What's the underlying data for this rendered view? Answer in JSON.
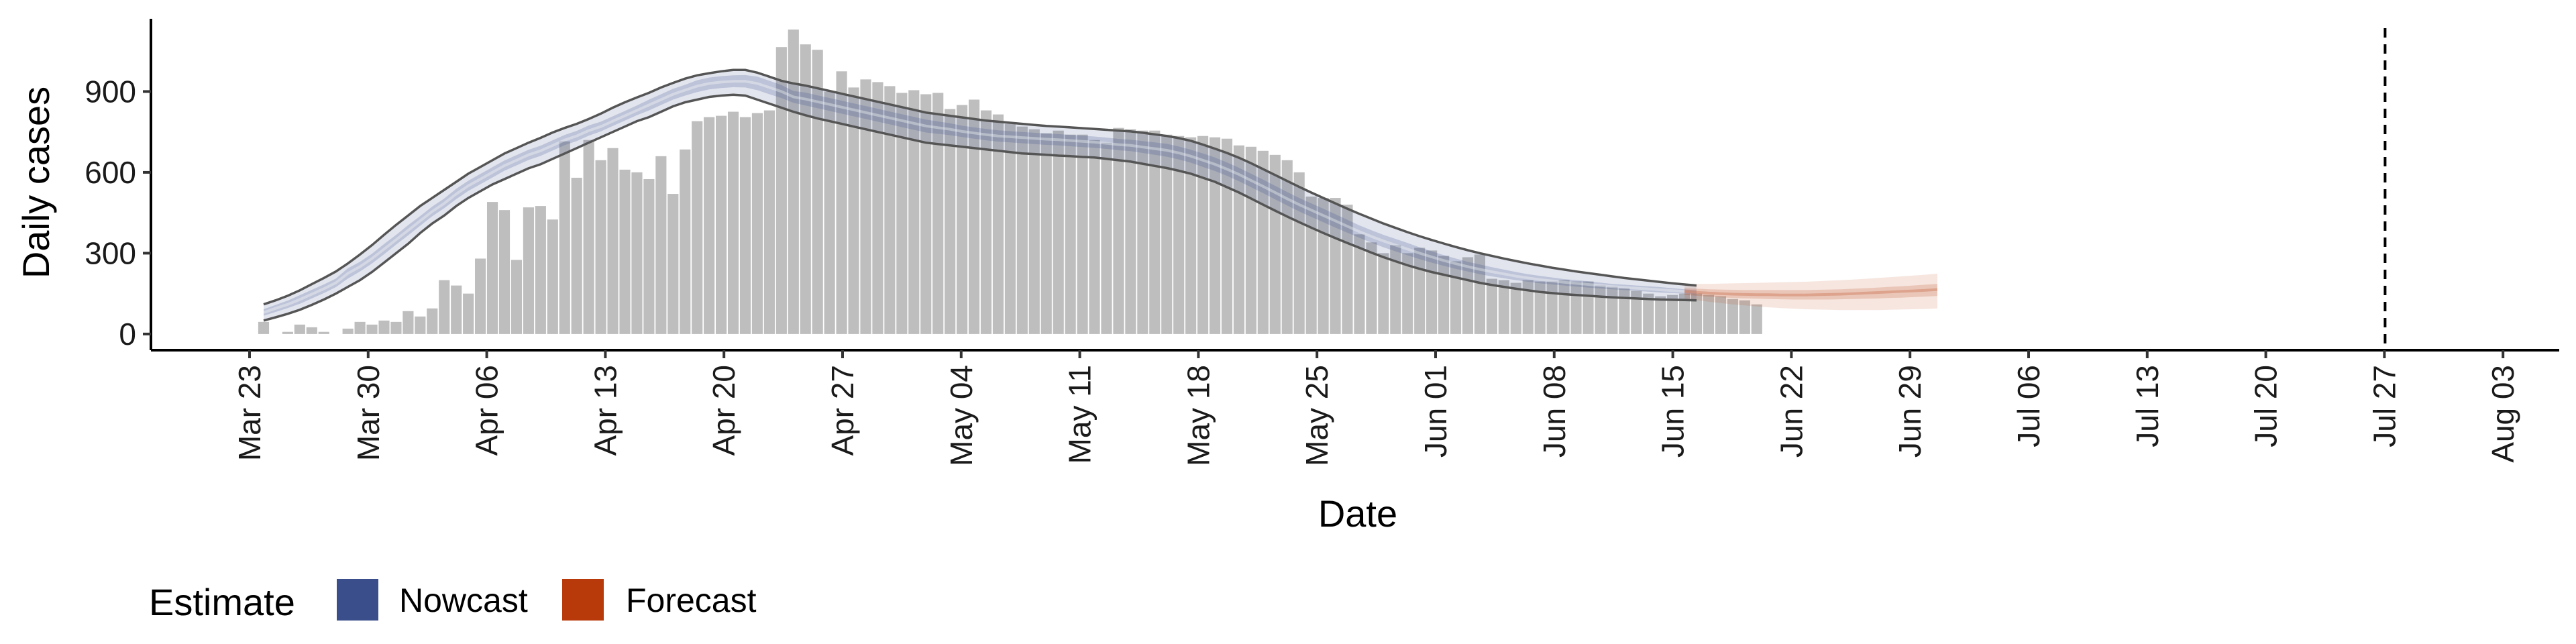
{
  "chart_data": {
    "type": "bar",
    "title": "",
    "xlabel": "Date",
    "ylabel": "Daily cases",
    "x_start": "2020-03-24",
    "ylim": [
      -60,
      1170
    ],
    "yticks": [
      0,
      300,
      600,
      900
    ],
    "ytick_labels": [
      "0",
      "300",
      "600",
      "900"
    ],
    "xtick_labels": [
      "Mar 23",
      "Mar 30",
      "Apr 06",
      "Apr 13",
      "Apr 20",
      "Apr 27",
      "May 04",
      "May 11",
      "May 18",
      "May 25",
      "Jun 01",
      "Jun 08",
      "Jun 15",
      "Jun 22",
      "Jun 29",
      "Jul 06",
      "Jul 13",
      "Jul 20",
      "Jul 27",
      "Aug 03"
    ],
    "forecast_date": "Jul 27",
    "colors": {
      "bars": "#bebebe",
      "nowcast": "#3a4e8c",
      "forecast": "#b83a0a",
      "outline": "#555555"
    },
    "bars": {
      "name": "Daily cases",
      "values": [
        45,
        0,
        8,
        35,
        25,
        8,
        0,
        20,
        45,
        35,
        50,
        45,
        85,
        65,
        95,
        200,
        180,
        150,
        280,
        490,
        460,
        275,
        470,
        475,
        425,
        715,
        580,
        720,
        645,
        690,
        610,
        600,
        575,
        660,
        520,
        685,
        790,
        805,
        810,
        825,
        805,
        820,
        830,
        1065,
        1130,
        1075,
        1055,
        900,
        975,
        915,
        945,
        935,
        920,
        895,
        905,
        890,
        895,
        835,
        850,
        870,
        830,
        815,
        780,
        770,
        760,
        745,
        755,
        740,
        740,
        720,
        710,
        765,
        760,
        755,
        755,
        740,
        735,
        730,
        735,
        730,
        725,
        700,
        695,
        680,
        665,
        645,
        600,
        510,
        505,
        505,
        480,
        370,
        340,
        300,
        330,
        300,
        320,
        310,
        290,
        270,
        285,
        295,
        205,
        200,
        190,
        200,
        195,
        195,
        200,
        195,
        195,
        180,
        175,
        170,
        160,
        150,
        140,
        145,
        150,
        150,
        145,
        140,
        130,
        125,
        110
      ]
    },
    "estimate": {
      "name": "Nowcast",
      "median": [
        80,
        95,
        110,
        128,
        148,
        168,
        190,
        225,
        250,
        280,
        315,
        350,
        385,
        420,
        455,
        485,
        520,
        550,
        575,
        600,
        625,
        645,
        665,
        680,
        700,
        720,
        735,
        755,
        770,
        790,
        810,
        830,
        850,
        870,
        890,
        905,
        920,
        930,
        935,
        938,
        938,
        930,
        915,
        900,
        880,
        872,
        862,
        852,
        842,
        832,
        822,
        812,
        802,
        792,
        782,
        772,
        766,
        760,
        752,
        746,
        740,
        735,
        732,
        729,
        726,
        723,
        721,
        718,
        715,
        712,
        708,
        703,
        700,
        694,
        688,
        682,
        672,
        660,
        645,
        630,
        612,
        592,
        570,
        548,
        525,
        502,
        480,
        460,
        440,
        420,
        400,
        380,
        362,
        345,
        330,
        315,
        300,
        286,
        273,
        261,
        250,
        240,
        231,
        223,
        215,
        208,
        202,
        197,
        192,
        188,
        184,
        180,
        176,
        173,
        170,
        167,
        164,
        161,
        158,
        155
      ],
      "outer_lower": [
        50,
        62,
        75,
        90,
        108,
        128,
        150,
        175,
        200,
        230,
        265,
        300,
        335,
        375,
        410,
        440,
        475,
        505,
        530,
        555,
        575,
        595,
        615,
        630,
        650,
        670,
        690,
        710,
        730,
        750,
        770,
        790,
        805,
        825,
        845,
        860,
        870,
        880,
        885,
        888,
        885,
        870,
        855,
        840,
        825,
        812,
        800,
        790,
        780,
        770,
        760,
        750,
        740,
        730,
        720,
        710,
        705,
        700,
        695,
        690,
        685,
        680,
        675,
        670,
        668,
        665,
        662,
        660,
        657,
        655,
        650,
        645,
        640,
        632,
        624,
        616,
        606,
        595,
        580,
        565,
        545,
        525,
        503,
        480,
        458,
        436,
        415,
        395,
        375,
        356,
        338,
        320,
        302,
        285,
        270,
        255,
        242,
        230,
        220,
        210,
        200,
        190,
        182,
        175,
        168,
        162,
        156,
        152,
        148,
        145,
        142,
        139,
        136,
        134,
        132,
        130,
        128,
        127,
        126,
        125
      ],
      "outer_upper": [
        110,
        125,
        142,
        162,
        185,
        208,
        232,
        262,
        295,
        330,
        368,
        405,
        440,
        475,
        505,
        535,
        565,
        595,
        620,
        645,
        670,
        690,
        710,
        728,
        748,
        765,
        780,
        798,
        818,
        840,
        860,
        878,
        895,
        915,
        932,
        948,
        960,
        968,
        975,
        980,
        980,
        970,
        955,
        940,
        930,
        922,
        912,
        902,
        892,
        882,
        872,
        862,
        852,
        842,
        832,
        822,
        816,
        810,
        804,
        798,
        792,
        788,
        784,
        780,
        776,
        772,
        770,
        767,
        764,
        761,
        758,
        755,
        752,
        747,
        741,
        735,
        727,
        717,
        703,
        688,
        672,
        654,
        634,
        612,
        590,
        568,
        546,
        525,
        505,
        485,
        465,
        446,
        428,
        410,
        394,
        378,
        363,
        349,
        336,
        323,
        311,
        300,
        290,
        280,
        271,
        262,
        254,
        246,
        239,
        232,
        226,
        220,
        214,
        208,
        203,
        198,
        193,
        188,
        184,
        180
      ],
      "inner_lower": [
        68,
        82,
        96,
        112,
        132,
        152,
        174,
        206,
        232,
        262,
        296,
        332,
        366,
        402,
        437,
        467,
        501,
        531,
        556,
        581,
        606,
        626,
        646,
        661,
        681,
        701,
        716,
        736,
        752,
        772,
        792,
        812,
        830,
        850,
        870,
        885,
        898,
        908,
        913,
        916,
        915,
        905,
        890,
        876,
        858,
        848,
        838,
        828,
        818,
        808,
        798,
        788,
        778,
        768,
        758,
        748,
        743,
        738,
        731,
        725,
        719,
        714,
        711,
        708,
        705,
        702,
        700,
        697,
        694,
        691,
        687,
        682,
        679,
        672,
        665,
        658,
        648,
        636,
        620,
        605,
        587,
        567,
        545,
        523,
        500,
        477,
        455,
        435,
        415,
        395,
        376,
        357,
        339,
        322,
        307,
        292,
        278,
        265,
        253,
        242,
        232,
        222,
        214,
        207,
        200,
        194,
        188,
        184,
        180,
        176,
        172,
        169,
        166,
        163,
        160,
        157,
        154,
        152,
        150,
        148
      ],
      "inner_upper": [
        92,
        108,
        124,
        144,
        164,
        184,
        206,
        244,
        268,
        298,
        334,
        368,
        404,
        438,
        473,
        503,
        539,
        569,
        594,
        619,
        644,
        664,
        684,
        699,
        719,
        739,
        754,
        774,
        788,
        808,
        828,
        848,
        870,
        890,
        910,
        925,
        942,
        952,
        957,
        960,
        961,
        955,
        940,
        924,
        902,
        896,
        886,
        876,
        866,
        856,
        846,
        836,
        826,
        816,
        806,
        796,
        789,
        782,
        773,
        767,
        761,
        756,
        753,
        750,
        747,
        744,
        742,
        739,
        736,
        733,
        729,
        724,
        721,
        716,
        711,
        706,
        696,
        684,
        670,
        655,
        637,
        617,
        595,
        573,
        550,
        527,
        505,
        485,
        465,
        445,
        424,
        403,
        385,
        368,
        353,
        338,
        322,
        307,
        293,
        280,
        268,
        258,
        248,
        239,
        230,
        222,
        216,
        210,
        204,
        200,
        196,
        191,
        186,
        183,
        180,
        177,
        174,
        170,
        166,
        162
      ]
    },
    "forecast": {
      "name": "Forecast",
      "start_offset": 118,
      "median": [
        158,
        155,
        152,
        150,
        148,
        147,
        146,
        146,
        145,
        145,
        145,
        146,
        147,
        148,
        150,
        152,
        154,
        156,
        158,
        160,
        162,
        165
      ],
      "outer_lower": [
        130,
        125,
        120,
        115,
        110,
        106,
        102,
        99,
        96,
        94,
        92,
        91,
        90,
        89,
        89,
        89,
        89,
        90,
        91,
        92,
        93,
        95
      ],
      "outer_upper": [
        185,
        186,
        186,
        187,
        188,
        189,
        190,
        191,
        192,
        193,
        194,
        196,
        198,
        200,
        202,
        205,
        208,
        211,
        214,
        217,
        220,
        224
      ],
      "inner_lower": [
        145,
        142,
        139,
        136,
        134,
        132,
        131,
        130,
        129,
        128,
        128,
        128,
        128,
        129,
        130,
        131,
        132,
        134,
        135,
        137,
        139,
        141
      ],
      "inner_upper": [
        170,
        168,
        166,
        165,
        164,
        163,
        163,
        163,
        163,
        163,
        163,
        164,
        165,
        166,
        168,
        170,
        172,
        175,
        177,
        180,
        183,
        186
      ]
    },
    "legend": {
      "title": "Estimate",
      "position": "bottom-left",
      "items": [
        {
          "label": "Nowcast",
          "color": "#3a4e8c"
        },
        {
          "label": "Forecast",
          "color": "#b83a0a"
        }
      ]
    },
    "grid": false
  }
}
